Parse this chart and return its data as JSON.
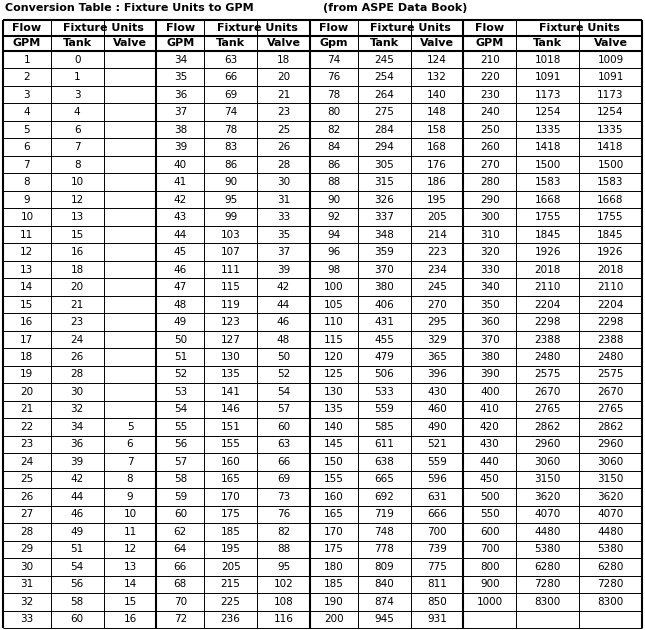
{
  "title_left": "Conversion Table : Fixture Units to GPM",
  "title_right": "(from ASPE Data Book)",
  "col_headers_row1": [
    [
      0,
      1,
      "Flow"
    ],
    [
      1,
      3,
      "Fixture Units"
    ],
    [
      3,
      4,
      "Flow"
    ],
    [
      4,
      6,
      "Fixture Units"
    ],
    [
      6,
      7,
      "Flow"
    ],
    [
      7,
      9,
      "Fixture Units"
    ],
    [
      9,
      10,
      "Flow"
    ],
    [
      10,
      12,
      "Fixture Units"
    ]
  ],
  "col_headers_row2": [
    "GPM",
    "Tank",
    "Valve",
    "GPM",
    "Tank",
    "Valve",
    "Gpm",
    "Tank",
    "Valve",
    "GPM",
    "Tank",
    "Valve"
  ],
  "table_data": [
    [
      "1",
      "0",
      "",
      "34",
      "63",
      "18",
      "74",
      "245",
      "124",
      "210",
      "1018",
      "1009"
    ],
    [
      "2",
      "1",
      "",
      "35",
      "66",
      "20",
      "76",
      "254",
      "132",
      "220",
      "1091",
      "1091"
    ],
    [
      "3",
      "3",
      "",
      "36",
      "69",
      "21",
      "78",
      "264",
      "140",
      "230",
      "1173",
      "1173"
    ],
    [
      "4",
      "4",
      "",
      "37",
      "74",
      "23",
      "80",
      "275",
      "148",
      "240",
      "1254",
      "1254"
    ],
    [
      "5",
      "6",
      "",
      "38",
      "78",
      "25",
      "82",
      "284",
      "158",
      "250",
      "1335",
      "1335"
    ],
    [
      "6",
      "7",
      "",
      "39",
      "83",
      "26",
      "84",
      "294",
      "168",
      "260",
      "1418",
      "1418"
    ],
    [
      "7",
      "8",
      "",
      "40",
      "86",
      "28",
      "86",
      "305",
      "176",
      "270",
      "1500",
      "1500"
    ],
    [
      "8",
      "10",
      "",
      "41",
      "90",
      "30",
      "88",
      "315",
      "186",
      "280",
      "1583",
      "1583"
    ],
    [
      "9",
      "12",
      "",
      "42",
      "95",
      "31",
      "90",
      "326",
      "195",
      "290",
      "1668",
      "1668"
    ],
    [
      "10",
      "13",
      "",
      "43",
      "99",
      "33",
      "92",
      "337",
      "205",
      "300",
      "1755",
      "1755"
    ],
    [
      "11",
      "15",
      "",
      "44",
      "103",
      "35",
      "94",
      "348",
      "214",
      "310",
      "1845",
      "1845"
    ],
    [
      "12",
      "16",
      "",
      "45",
      "107",
      "37",
      "96",
      "359",
      "223",
      "320",
      "1926",
      "1926"
    ],
    [
      "13",
      "18",
      "",
      "46",
      "111",
      "39",
      "98",
      "370",
      "234",
      "330",
      "2018",
      "2018"
    ],
    [
      "14",
      "20",
      "",
      "47",
      "115",
      "42",
      "100",
      "380",
      "245",
      "340",
      "2110",
      "2110"
    ],
    [
      "15",
      "21",
      "",
      "48",
      "119",
      "44",
      "105",
      "406",
      "270",
      "350",
      "2204",
      "2204"
    ],
    [
      "16",
      "23",
      "",
      "49",
      "123",
      "46",
      "110",
      "431",
      "295",
      "360",
      "2298",
      "2298"
    ],
    [
      "17",
      "24",
      "",
      "50",
      "127",
      "48",
      "115",
      "455",
      "329",
      "370",
      "2388",
      "2388"
    ],
    [
      "18",
      "26",
      "",
      "51",
      "130",
      "50",
      "120",
      "479",
      "365",
      "380",
      "2480",
      "2480"
    ],
    [
      "19",
      "28",
      "",
      "52",
      "135",
      "52",
      "125",
      "506",
      "396",
      "390",
      "2575",
      "2575"
    ],
    [
      "20",
      "30",
      "",
      "53",
      "141",
      "54",
      "130",
      "533",
      "430",
      "400",
      "2670",
      "2670"
    ],
    [
      "21",
      "32",
      "",
      "54",
      "146",
      "57",
      "135",
      "559",
      "460",
      "410",
      "2765",
      "2765"
    ],
    [
      "22",
      "34",
      "5",
      "55",
      "151",
      "60",
      "140",
      "585",
      "490",
      "420",
      "2862",
      "2862"
    ],
    [
      "23",
      "36",
      "6",
      "56",
      "155",
      "63",
      "145",
      "611",
      "521",
      "430",
      "2960",
      "2960"
    ],
    [
      "24",
      "39",
      "7",
      "57",
      "160",
      "66",
      "150",
      "638",
      "559",
      "440",
      "3060",
      "3060"
    ],
    [
      "25",
      "42",
      "8",
      "58",
      "165",
      "69",
      "155",
      "665",
      "596",
      "450",
      "3150",
      "3150"
    ],
    [
      "26",
      "44",
      "9",
      "59",
      "170",
      "73",
      "160",
      "692",
      "631",
      "500",
      "3620",
      "3620"
    ],
    [
      "27",
      "46",
      "10",
      "60",
      "175",
      "76",
      "165",
      "719",
      "666",
      "550",
      "4070",
      "4070"
    ],
    [
      "28",
      "49",
      "11",
      "62",
      "185",
      "82",
      "170",
      "748",
      "700",
      "600",
      "4480",
      "4480"
    ],
    [
      "29",
      "51",
      "12",
      "64",
      "195",
      "88",
      "175",
      "778",
      "739",
      "700",
      "5380",
      "5380"
    ],
    [
      "30",
      "54",
      "13",
      "66",
      "205",
      "95",
      "180",
      "809",
      "775",
      "800",
      "6280",
      "6280"
    ],
    [
      "31",
      "56",
      "14",
      "68",
      "215",
      "102",
      "185",
      "840",
      "811",
      "900",
      "7280",
      "7280"
    ],
    [
      "32",
      "58",
      "15",
      "70",
      "225",
      "108",
      "190",
      "874",
      "850",
      "1000",
      "8300",
      "8300"
    ],
    [
      "33",
      "60",
      "16",
      "72",
      "236",
      "116",
      "200",
      "945",
      "931",
      "",
      "",
      ""
    ]
  ],
  "col_widths_norm": [
    38,
    42,
    42,
    38,
    42,
    42,
    38,
    42,
    42,
    42,
    50,
    50
  ],
  "bg_color": "#ffffff",
  "text_color": "#000000",
  "title_fontsize": 8.0,
  "header1_fontsize": 8.0,
  "header2_fontsize": 8.0,
  "data_fontsize": 7.5,
  "thick_lw": 1.5,
  "thin_lw": 0.7
}
